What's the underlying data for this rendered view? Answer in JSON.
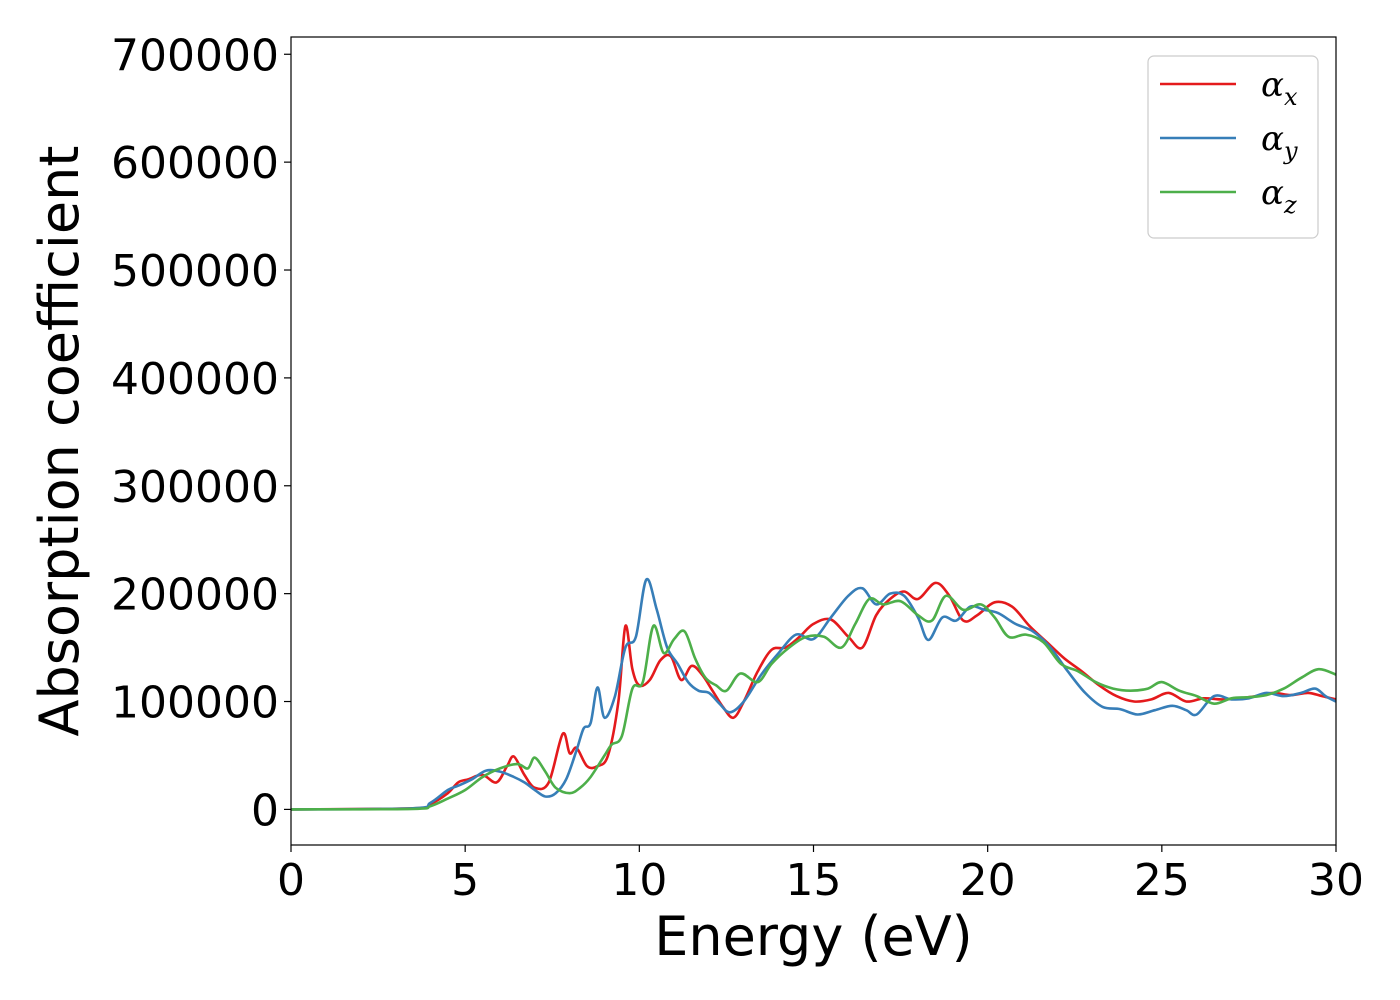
{
  "chart_data": {
    "type": "line",
    "title": "",
    "xlabel": "Energy (eV)",
    "ylabel": "Absorption coefficient",
    "xlim": [
      0,
      30
    ],
    "ylim": [
      -33000,
      716000
    ],
    "xticks": [
      0,
      5,
      10,
      15,
      20,
      25,
      30
    ],
    "yticks": [
      0,
      100000,
      200000,
      300000,
      400000,
      500000,
      600000,
      700000
    ],
    "grid": false,
    "legend_position": "top-right",
    "series": [
      {
        "name": "αx",
        "color": "#e41a1c",
        "points": [
          [
            0,
            0
          ],
          [
            3.5,
            1000
          ],
          [
            4,
            5000
          ],
          [
            4.5,
            15000
          ],
          [
            4.8,
            25000
          ],
          [
            5.1,
            28000
          ],
          [
            5.5,
            32000
          ],
          [
            5.9,
            25000
          ],
          [
            6.2,
            40000
          ],
          [
            6.4,
            49000
          ],
          [
            6.7,
            32000
          ],
          [
            7.0,
            20000
          ],
          [
            7.4,
            25000
          ],
          [
            7.8,
            70000
          ],
          [
            8.0,
            52000
          ],
          [
            8.2,
            57000
          ],
          [
            8.5,
            40000
          ],
          [
            8.8,
            40000
          ],
          [
            9.1,
            50000
          ],
          [
            9.4,
            100000
          ],
          [
            9.6,
            170000
          ],
          [
            9.8,
            130000
          ],
          [
            10.0,
            115000
          ],
          [
            10.3,
            120000
          ],
          [
            10.6,
            138000
          ],
          [
            10.9,
            142000
          ],
          [
            11.2,
            120000
          ],
          [
            11.5,
            133000
          ],
          [
            11.8,
            125000
          ],
          [
            12.1,
            110000
          ],
          [
            12.4,
            95000
          ],
          [
            12.7,
            85000
          ],
          [
            13.0,
            100000
          ],
          [
            13.4,
            128000
          ],
          [
            13.8,
            148000
          ],
          [
            14.2,
            150000
          ],
          [
            14.6,
            160000
          ],
          [
            15.0,
            172000
          ],
          [
            15.5,
            176000
          ],
          [
            16.0,
            160000
          ],
          [
            16.4,
            150000
          ],
          [
            16.8,
            180000
          ],
          [
            17.2,
            195000
          ],
          [
            17.6,
            202000
          ],
          [
            18.0,
            195000
          ],
          [
            18.5,
            210000
          ],
          [
            18.9,
            198000
          ],
          [
            19.3,
            175000
          ],
          [
            19.7,
            180000
          ],
          [
            20.2,
            192000
          ],
          [
            20.7,
            188000
          ],
          [
            21.2,
            170000
          ],
          [
            21.7,
            155000
          ],
          [
            22.2,
            140000
          ],
          [
            22.7,
            128000
          ],
          [
            23.2,
            115000
          ],
          [
            23.7,
            105000
          ],
          [
            24.2,
            100000
          ],
          [
            24.7,
            102000
          ],
          [
            25.2,
            108000
          ],
          [
            25.7,
            100000
          ],
          [
            26.2,
            103000
          ],
          [
            26.7,
            102000
          ],
          [
            27.2,
            103000
          ],
          [
            27.7,
            105000
          ],
          [
            28.2,
            108000
          ],
          [
            28.7,
            106000
          ],
          [
            29.2,
            108000
          ],
          [
            29.6,
            105000
          ],
          [
            30,
            102000
          ]
        ]
      },
      {
        "name": "αy",
        "color": "#377eb8",
        "points": [
          [
            0,
            0
          ],
          [
            3.5,
            1000
          ],
          [
            4,
            6000
          ],
          [
            4.5,
            18000
          ],
          [
            4.8,
            22000
          ],
          [
            5.2,
            28000
          ],
          [
            5.6,
            36000
          ],
          [
            6.0,
            35000
          ],
          [
            6.4,
            30000
          ],
          [
            6.7,
            25000
          ],
          [
            7.0,
            18000
          ],
          [
            7.3,
            12000
          ],
          [
            7.6,
            15000
          ],
          [
            7.9,
            28000
          ],
          [
            8.2,
            55000
          ],
          [
            8.4,
            75000
          ],
          [
            8.6,
            80000
          ],
          [
            8.8,
            113000
          ],
          [
            9.0,
            85000
          ],
          [
            9.3,
            105000
          ],
          [
            9.6,
            150000
          ],
          [
            9.9,
            160000
          ],
          [
            10.2,
            213000
          ],
          [
            10.5,
            185000
          ],
          [
            10.8,
            150000
          ],
          [
            11.1,
            135000
          ],
          [
            11.4,
            118000
          ],
          [
            11.7,
            110000
          ],
          [
            12.0,
            108000
          ],
          [
            12.3,
            98000
          ],
          [
            12.6,
            90000
          ],
          [
            13.0,
            100000
          ],
          [
            13.5,
            125000
          ],
          [
            14.0,
            145000
          ],
          [
            14.5,
            162000
          ],
          [
            15.0,
            158000
          ],
          [
            15.5,
            178000
          ],
          [
            16.0,
            198000
          ],
          [
            16.4,
            205000
          ],
          [
            16.8,
            190000
          ],
          [
            17.2,
            200000
          ],
          [
            17.6,
            198000
          ],
          [
            18.0,
            178000
          ],
          [
            18.3,
            157000
          ],
          [
            18.7,
            178000
          ],
          [
            19.1,
            175000
          ],
          [
            19.5,
            188000
          ],
          [
            19.9,
            185000
          ],
          [
            20.3,
            182000
          ],
          [
            20.8,
            172000
          ],
          [
            21.3,
            165000
          ],
          [
            21.8,
            150000
          ],
          [
            22.3,
            128000
          ],
          [
            22.8,
            108000
          ],
          [
            23.3,
            95000
          ],
          [
            23.8,
            93000
          ],
          [
            24.3,
            88000
          ],
          [
            24.8,
            92000
          ],
          [
            25.3,
            96000
          ],
          [
            25.7,
            92000
          ],
          [
            26.0,
            88000
          ],
          [
            26.5,
            105000
          ],
          [
            27.0,
            102000
          ],
          [
            27.5,
            103000
          ],
          [
            28.0,
            108000
          ],
          [
            28.5,
            105000
          ],
          [
            29.0,
            108000
          ],
          [
            29.4,
            112000
          ],
          [
            29.7,
            105000
          ],
          [
            30,
            100000
          ]
        ]
      },
      {
        "name": "αz",
        "color": "#4daf4a",
        "points": [
          [
            0,
            0
          ],
          [
            3.5,
            500
          ],
          [
            4,
            3000
          ],
          [
            4.5,
            10000
          ],
          [
            5.0,
            18000
          ],
          [
            5.5,
            30000
          ],
          [
            6.0,
            38000
          ],
          [
            6.5,
            42000
          ],
          [
            6.8,
            38000
          ],
          [
            7.0,
            48000
          ],
          [
            7.3,
            35000
          ],
          [
            7.6,
            20000
          ],
          [
            8.0,
            15000
          ],
          [
            8.3,
            20000
          ],
          [
            8.6,
            30000
          ],
          [
            9.0,
            50000
          ],
          [
            9.2,
            60000
          ],
          [
            9.5,
            68000
          ],
          [
            9.8,
            112000
          ],
          [
            10.1,
            118000
          ],
          [
            10.4,
            170000
          ],
          [
            10.7,
            145000
          ],
          [
            11.0,
            158000
          ],
          [
            11.3,
            165000
          ],
          [
            11.6,
            140000
          ],
          [
            11.9,
            122000
          ],
          [
            12.2,
            115000
          ],
          [
            12.5,
            110000
          ],
          [
            12.9,
            126000
          ],
          [
            13.4,
            118000
          ],
          [
            13.8,
            135000
          ],
          [
            14.3,
            150000
          ],
          [
            14.8,
            160000
          ],
          [
            15.3,
            160000
          ],
          [
            15.8,
            150000
          ],
          [
            16.2,
            172000
          ],
          [
            16.6,
            195000
          ],
          [
            17.0,
            190000
          ],
          [
            17.5,
            193000
          ],
          [
            18.0,
            180000
          ],
          [
            18.4,
            175000
          ],
          [
            18.8,
            198000
          ],
          [
            19.3,
            185000
          ],
          [
            19.8,
            190000
          ],
          [
            20.2,
            178000
          ],
          [
            20.6,
            160000
          ],
          [
            21.1,
            162000
          ],
          [
            21.6,
            155000
          ],
          [
            22.1,
            135000
          ],
          [
            22.6,
            128000
          ],
          [
            23.1,
            118000
          ],
          [
            23.6,
            112000
          ],
          [
            24.1,
            110000
          ],
          [
            24.6,
            112000
          ],
          [
            25.0,
            118000
          ],
          [
            25.5,
            110000
          ],
          [
            26.0,
            105000
          ],
          [
            26.5,
            98000
          ],
          [
            27.0,
            103000
          ],
          [
            27.5,
            104000
          ],
          [
            28.0,
            106000
          ],
          [
            28.5,
            112000
          ],
          [
            29.0,
            122000
          ],
          [
            29.5,
            130000
          ],
          [
            30,
            125000
          ]
        ]
      }
    ]
  }
}
